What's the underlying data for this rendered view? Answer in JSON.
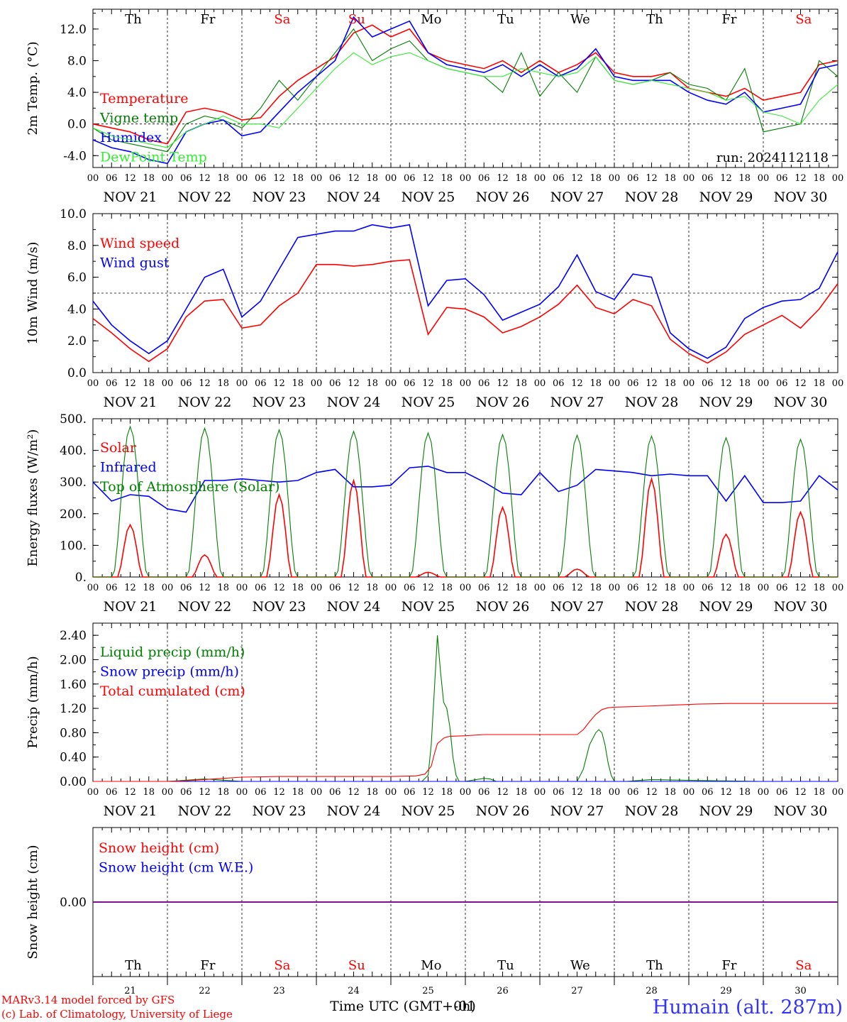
{
  "colors": {
    "red": "#ff0000",
    "green": "#008000",
    "blue": "#0000ff",
    "lightgreen": "#33ee33",
    "purple": "#800080",
    "black": "#000000",
    "humain_blue": "#3333ff"
  },
  "days": [
    "Th",
    "Fr",
    "Sa",
    "Su",
    "Mo",
    "Tu",
    "We",
    "Th",
    "Fr",
    "Sa"
  ],
  "weekend_day_indices": [
    2,
    3,
    9
  ],
  "hour_labels": [
    "00",
    "06",
    "12",
    "18"
  ],
  "date_labels": [
    "NOV 21",
    "NOV 22",
    "NOV 23",
    "NOV 24",
    "NOV 25",
    "NOV 26",
    "NOV 27",
    "NOV 28",
    "NOV 29",
    "NOV 30"
  ],
  "bottom_day_numbers": [
    "21",
    "22",
    "23",
    "24",
    "25",
    "26",
    "27",
    "28",
    "29",
    "30"
  ],
  "x_axis_title": "Time UTC (GMT+0h)",
  "x_axis_overlay": "-01",
  "footer": {
    "left_line1": "MARv3.14 model forced by GFS",
    "left_line2": "(c) Lab. of Climatology, University of Liege",
    "station": "Humain (alt. 287m)"
  },
  "chart_data": [
    {
      "type": "line",
      "ylabel": "2m Temp. (°C)",
      "ylim": [
        -5.5,
        14.5
      ],
      "yticks": [
        "-4.0",
        "0.0",
        "4.0",
        "8.0",
        "12.0"
      ],
      "reference_line": 0.0,
      "annotation": "run: 2024112118",
      "x_unit": "hours since NOV 21 00 UTC",
      "series": [
        {
          "name": "Temperature",
          "color": "#ff0000",
          "x": [
            0,
            6,
            12,
            18,
            24,
            30,
            36,
            42,
            48,
            54,
            60,
            66,
            72,
            78,
            84,
            90,
            96,
            102,
            108,
            114,
            120,
            126,
            132,
            138,
            144,
            150,
            156,
            162,
            168,
            174,
            180,
            186,
            192,
            198,
            204,
            210,
            216,
            222,
            228,
            234,
            240
          ],
          "y": [
            0,
            -0.5,
            -1.0,
            -2.0,
            -2.5,
            1.5,
            2.0,
            1.5,
            0.5,
            0.8,
            3.5,
            5.5,
            7.0,
            8.5,
            11.5,
            12.5,
            11.0,
            12.0,
            9.0,
            8.0,
            7.5,
            7.0,
            8.0,
            6.5,
            8.0,
            6.5,
            7.5,
            9.0,
            6.5,
            6.0,
            6.0,
            6.5,
            4.5,
            4.0,
            3.5,
            4.5,
            3.0,
            3.5,
            4.0,
            7.5,
            8.0
          ]
        },
        {
          "name": "Vigne temp",
          "color": "#008000",
          "x": [
            0,
            6,
            12,
            18,
            24,
            30,
            36,
            42,
            48,
            54,
            60,
            66,
            72,
            78,
            84,
            90,
            96,
            102,
            108,
            114,
            120,
            126,
            132,
            138,
            144,
            150,
            156,
            162,
            168,
            174,
            180,
            186,
            192,
            198,
            204,
            210,
            216,
            222,
            228,
            234,
            240
          ],
          "y": [
            -0.5,
            -2.0,
            -2.5,
            -3.0,
            -3.5,
            0.0,
            1.0,
            0.5,
            -0.5,
            2.0,
            5.5,
            3.0,
            6.0,
            9.0,
            12.0,
            8.0,
            9.5,
            10.5,
            8.0,
            7.0,
            6.5,
            6.0,
            4.0,
            9.0,
            3.5,
            6.5,
            4.0,
            8.5,
            5.5,
            5.0,
            5.5,
            6.5,
            5.0,
            4.5,
            3.0,
            7.0,
            -1.0,
            -0.5,
            0.0,
            8.0,
            6.0
          ]
        },
        {
          "name": "Humidex",
          "color": "#0000ff",
          "x": [
            0,
            6,
            12,
            18,
            24,
            30,
            36,
            42,
            48,
            54,
            60,
            66,
            72,
            78,
            84,
            90,
            96,
            102,
            108,
            114,
            120,
            126,
            132,
            138,
            144,
            150,
            156,
            162,
            168,
            174,
            180,
            186,
            192,
            198,
            204,
            210,
            216,
            222,
            228,
            234,
            240
          ],
          "y": [
            -2.0,
            -3.0,
            -3.5,
            -4.5,
            -5.0,
            -1.0,
            0.0,
            0.5,
            -1.5,
            -1.0,
            1.5,
            4.0,
            6.0,
            8.0,
            13.5,
            11.0,
            12.0,
            13.0,
            9.0,
            7.5,
            7.0,
            6.5,
            7.5,
            6.0,
            7.5,
            6.0,
            7.0,
            9.5,
            6.0,
            5.5,
            5.5,
            5.5,
            4.0,
            3.0,
            2.5,
            4.0,
            1.5,
            2.0,
            2.5,
            7.0,
            7.5
          ]
        },
        {
          "name": "DewPoint Temp",
          "color": "#33ee33",
          "x": [
            0,
            6,
            12,
            18,
            24,
            30,
            36,
            42,
            48,
            54,
            60,
            66,
            72,
            78,
            84,
            90,
            96,
            102,
            108,
            114,
            120,
            126,
            132,
            138,
            144,
            150,
            156,
            162,
            168,
            174,
            180,
            186,
            192,
            198,
            204,
            210,
            216,
            222,
            228,
            234,
            240
          ],
          "y": [
            -0.5,
            -1.5,
            -2.0,
            -2.5,
            -3.0,
            -1.0,
            0.0,
            1.0,
            0.0,
            0.0,
            -0.5,
            2.0,
            4.5,
            7.0,
            9.0,
            7.5,
            8.5,
            9.0,
            8.0,
            7.0,
            6.5,
            6.0,
            6.0,
            7.0,
            6.5,
            6.0,
            6.5,
            8.5,
            5.5,
            5.0,
            5.5,
            5.0,
            4.5,
            4.0,
            3.0,
            3.5,
            1.5,
            1.0,
            0.0,
            3.0,
            5.0
          ]
        }
      ]
    },
    {
      "type": "line",
      "ylabel": "10m Wind (m/s)",
      "ylim": [
        0,
        10
      ],
      "yticks": [
        "0.0",
        "2.0",
        "4.0",
        "6.0",
        "8.0",
        "10.0"
      ],
      "reference_line": 5.0,
      "x_unit": "hours since NOV 21 00 UTC",
      "series": [
        {
          "name": "Wind speed",
          "color": "#ff0000",
          "x": [
            0,
            6,
            12,
            18,
            24,
            30,
            36,
            42,
            48,
            54,
            60,
            66,
            72,
            78,
            84,
            90,
            96,
            102,
            108,
            114,
            120,
            126,
            132,
            138,
            144,
            150,
            156,
            162,
            168,
            174,
            180,
            186,
            192,
            198,
            204,
            210,
            216,
            222,
            228,
            234,
            240
          ],
          "y": [
            3.4,
            2.5,
            1.5,
            0.7,
            1.5,
            3.5,
            4.5,
            4.6,
            2.8,
            3.0,
            4.2,
            5.0,
            6.8,
            6.8,
            6.7,
            6.8,
            7.0,
            7.1,
            2.4,
            4.1,
            4.0,
            3.5,
            2.5,
            2.9,
            3.5,
            4.3,
            5.5,
            4.1,
            3.7,
            4.6,
            4.2,
            2.1,
            1.2,
            0.6,
            1.3,
            2.4,
            3.0,
            3.6,
            2.8,
            4.0,
            5.6
          ]
        },
        {
          "name": "Wind gust",
          "color": "#0000ff",
          "x": [
            0,
            6,
            12,
            18,
            24,
            30,
            36,
            42,
            48,
            54,
            60,
            66,
            72,
            78,
            84,
            90,
            96,
            102,
            108,
            114,
            120,
            126,
            132,
            138,
            144,
            150,
            156,
            162,
            168,
            174,
            180,
            186,
            192,
            198,
            204,
            210,
            216,
            222,
            228,
            234,
            240
          ],
          "y": [
            4.5,
            3.0,
            2.0,
            1.2,
            2.0,
            4.0,
            6.0,
            6.5,
            3.5,
            4.5,
            6.5,
            8.5,
            8.7,
            8.9,
            8.9,
            9.3,
            9.1,
            9.3,
            4.2,
            5.8,
            5.9,
            4.9,
            3.3,
            3.8,
            4.3,
            5.4,
            7.4,
            5.1,
            4.6,
            6.2,
            6.0,
            2.5,
            1.5,
            0.9,
            1.6,
            3.4,
            4.1,
            4.5,
            4.6,
            5.3,
            7.6
          ]
        }
      ]
    },
    {
      "type": "line",
      "ylabel": "Energy fluxes (W/m²)",
      "ylim": [
        0,
        500
      ],
      "yticks": [
        "0.",
        "100.",
        "200.",
        "300.",
        "400.",
        "500."
      ],
      "x_unit": "hours since NOV 21 00 UTC",
      "series": [
        {
          "name": "Solar",
          "color": "#ff0000",
          "day_peaks": [
            165,
            70,
            260,
            305,
            15,
            220,
            25,
            310,
            135,
            205
          ]
        },
        {
          "name": "Infrared",
          "color": "#0000ff",
          "x": [
            0,
            6,
            12,
            18,
            24,
            30,
            36,
            42,
            48,
            54,
            60,
            66,
            72,
            78,
            84,
            90,
            96,
            102,
            108,
            114,
            120,
            126,
            132,
            138,
            144,
            150,
            156,
            162,
            168,
            174,
            180,
            186,
            192,
            198,
            204,
            210,
            216,
            222,
            228,
            234,
            240
          ],
          "y": [
            300,
            240,
            260,
            255,
            215,
            205,
            305,
            305,
            310,
            305,
            300,
            305,
            330,
            340,
            285,
            285,
            290,
            345,
            350,
            330,
            330,
            300,
            265,
            260,
            330,
            270,
            290,
            340,
            335,
            330,
            320,
            325,
            320,
            320,
            240,
            320,
            235,
            235,
            240,
            320,
            275
          ]
        },
        {
          "name": "Top of Atmosphere (Solar)",
          "color": "#008000",
          "day_peaks": [
            475,
            470,
            465,
            460,
            455,
            450,
            448,
            445,
            440,
            435
          ]
        }
      ]
    },
    {
      "type": "line",
      "ylabel": "Precip (mm/h)",
      "ylim": [
        0,
        2.6
      ],
      "yticks": [
        "0.00",
        "0.40",
        "0.80",
        "1.20",
        "1.60",
        "2.00",
        "2.40"
      ],
      "x_unit": "hours since NOV 21 00 UTC",
      "series": [
        {
          "name": "Liquid precip (mm/h)",
          "color": "#008000",
          "x": [
            0,
            24,
            30,
            36,
            42,
            48,
            96,
            106,
            108,
            109,
            110,
            111,
            112,
            113,
            114,
            115,
            116,
            117,
            118,
            120,
            126,
            128,
            130,
            132,
            156,
            158,
            160,
            162,
            163,
            164,
            165,
            166,
            167,
            168,
            170,
            172,
            180,
            190,
            200,
            215,
            240
          ],
          "y": [
            0,
            0,
            0.02,
            0.04,
            0.02,
            0,
            0,
            0,
            0.1,
            0.6,
            1.5,
            2.4,
            1.8,
            1.3,
            1.2,
            0.9,
            0.4,
            0.1,
            0,
            0,
            0.05,
            0.04,
            0,
            0,
            0,
            0.2,
            0.6,
            0.8,
            0.85,
            0.8,
            0.6,
            0.3,
            0.1,
            0,
            0,
            0,
            0.03,
            0.02,
            0.01,
            0,
            0
          ]
        },
        {
          "name": "Snow precip (mm/h)",
          "color": "#0000ff",
          "x": [
            0,
            240
          ],
          "y": [
            0,
            0
          ]
        },
        {
          "name": "Total cumulated (cm)",
          "color": "#ff0000",
          "x": [
            0,
            24,
            30,
            36,
            42,
            48,
            60,
            96,
            104,
            107,
            109,
            110,
            111,
            113,
            114,
            115,
            120,
            126,
            132,
            156,
            158,
            160,
            162,
            164,
            166,
            168,
            175,
            185,
            195,
            205,
            215,
            240
          ],
          "y": [
            0,
            0,
            0.01,
            0.03,
            0.05,
            0.07,
            0.08,
            0.08,
            0.09,
            0.12,
            0.25,
            0.45,
            0.62,
            0.71,
            0.73,
            0.74,
            0.75,
            0.77,
            0.77,
            0.77,
            0.85,
            0.98,
            1.1,
            1.18,
            1.21,
            1.22,
            1.23,
            1.25,
            1.27,
            1.28,
            1.28,
            1.28
          ]
        }
      ]
    },
    {
      "type": "line",
      "ylabel": "Snow height (cm)",
      "ylim": [
        -1,
        1
      ],
      "yticks": [
        "0.00"
      ],
      "x_unit": "hours since NOV 21 00 UTC",
      "series": [
        {
          "name": "Snow height (cm)",
          "color": "#ff0000",
          "x": [
            0,
            240
          ],
          "y": [
            0,
            0
          ]
        },
        {
          "name": "Snow height (cm W.E.)",
          "color": "#0000ff",
          "x": [
            0,
            240
          ],
          "y": [
            0,
            0
          ]
        }
      ]
    }
  ]
}
